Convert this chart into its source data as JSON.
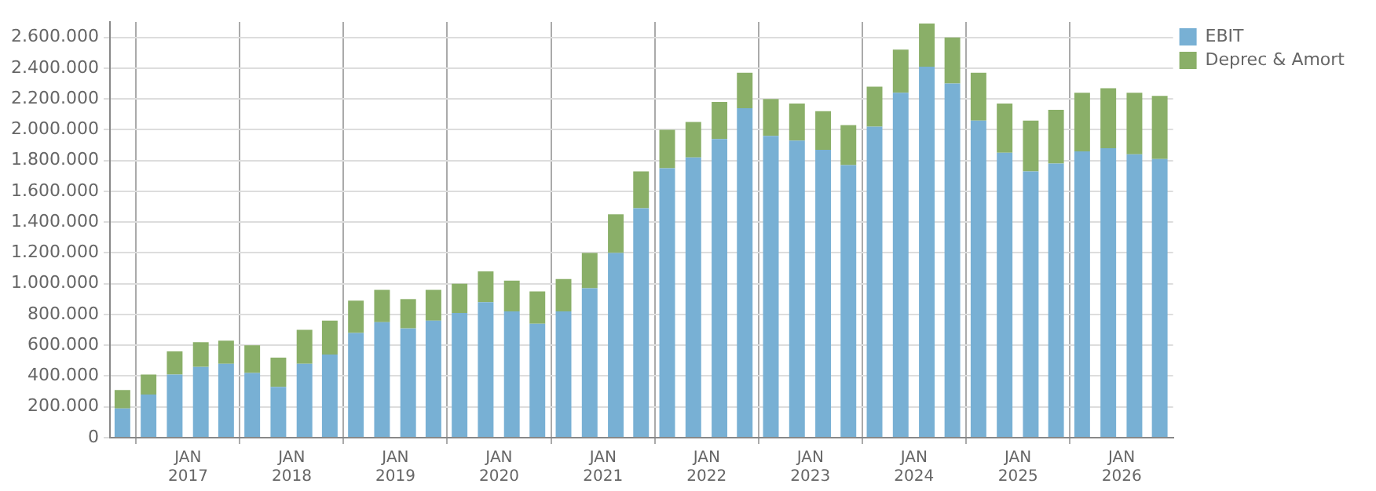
{
  "chart_data": {
    "type": "bar",
    "stacked": true,
    "legend": "top right",
    "grid": true,
    "x": [
      "2016-05-15",
      "2016-08-15",
      "2016-11-15",
      "2017-02-15",
      "2017-05-15",
      "2017-08-15",
      "2017-11-15",
      "2018-02-15",
      "2018-05-15",
      "2018-08-15",
      "2018-11-15",
      "2019-02-15",
      "2019-05-15",
      "2019-08-15",
      "2019-11-15",
      "2020-02-15",
      "2020-05-15",
      "2020-08-15",
      "2020-11-15",
      "2021-02-15",
      "2021-05-15",
      "2021-08-15",
      "2021-11-15",
      "2022-02-15",
      "2022-05-15",
      "2022-08-15",
      "2022-11-15",
      "2023-02-15",
      "2023-05-15",
      "2023-08-15",
      "2023-11-15",
      "2024-02-15",
      "2024-05-15",
      "2024-08-15",
      "2024-11-15",
      "2025-02-15",
      "2025-05-15",
      "2025-08-15",
      "2025-11-15",
      "2026-02-15",
      "2026-05-15"
    ],
    "series": [
      {
        "name": "EBIT",
        "color": "#78b0d4",
        "values": [
          190000,
          280000,
          410000,
          460000,
          480000,
          420000,
          330000,
          480000,
          540000,
          680000,
          750000,
          710000,
          760000,
          810000,
          880000,
          820000,
          740000,
          820000,
          970000,
          1200000,
          1490000,
          1750000,
          1820000,
          1940000,
          2140000,
          1960000,
          1930000,
          1870000,
          1770000,
          2020000,
          2240000,
          2410000,
          2300000,
          2060000,
          1850000,
          1730000,
          1780000,
          1860000,
          1880000,
          1840000,
          1810000
        ]
      },
      {
        "name": "Deprec & Amort",
        "color": "#8aaf68",
        "values": [
          120000,
          130000,
          150000,
          160000,
          150000,
          180000,
          190000,
          220000,
          220000,
          210000,
          210000,
          190000,
          200000,
          190000,
          200000,
          200000,
          210000,
          210000,
          230000,
          250000,
          240000,
          250000,
          230000,
          240000,
          230000,
          240000,
          240000,
          250000,
          260000,
          260000,
          280000,
          280000,
          300000,
          310000,
          320000,
          330000,
          350000,
          380000,
          390000,
          400000,
          410000
        ]
      }
    ],
    "xlim": [
      "2016-04-01",
      "2026-07-01"
    ],
    "xticks": [
      {
        "value": "2017-01",
        "label": "JAN 2017"
      },
      {
        "value": "2018-01",
        "label": "JAN 2018"
      },
      {
        "value": "2019-01",
        "label": "JAN 2019"
      },
      {
        "value": "2020-01",
        "label": "JAN 2020"
      },
      {
        "value": "2021-01",
        "label": "JAN 2021"
      },
      {
        "value": "2022-01",
        "label": "JAN 2022"
      },
      {
        "value": "2023-01",
        "label": "JAN 2023"
      },
      {
        "value": "2024-01",
        "label": "JAN 2024"
      },
      {
        "value": "2025-01",
        "label": "JAN 2025"
      },
      {
        "value": "2026-01",
        "label": "JAN 2026"
      }
    ],
    "ylim": [
      0,
      2700000
    ],
    "yticks": [
      {
        "value": 0,
        "label": "0"
      },
      {
        "value": 200000,
        "label": "200.000"
      },
      {
        "value": 400000,
        "label": "400.000"
      },
      {
        "value": 600000,
        "label": "600.000"
      },
      {
        "value": 800000,
        "label": "800.000"
      },
      {
        "value": 1000000,
        "label": "1.000.000"
      },
      {
        "value": 1200000,
        "label": "1.200.000"
      },
      {
        "value": 1400000,
        "label": "1.400.000"
      },
      {
        "value": 1600000,
        "label": "1.600.000"
      },
      {
        "value": 1800000,
        "label": "1.800.000"
      },
      {
        "value": 2000000,
        "label": "2.000.000"
      },
      {
        "value": 2200000,
        "label": "2.200.000"
      },
      {
        "value": 2400000,
        "label": "2.400.000"
      },
      {
        "value": 2600000,
        "label": "2.600.000"
      }
    ]
  }
}
